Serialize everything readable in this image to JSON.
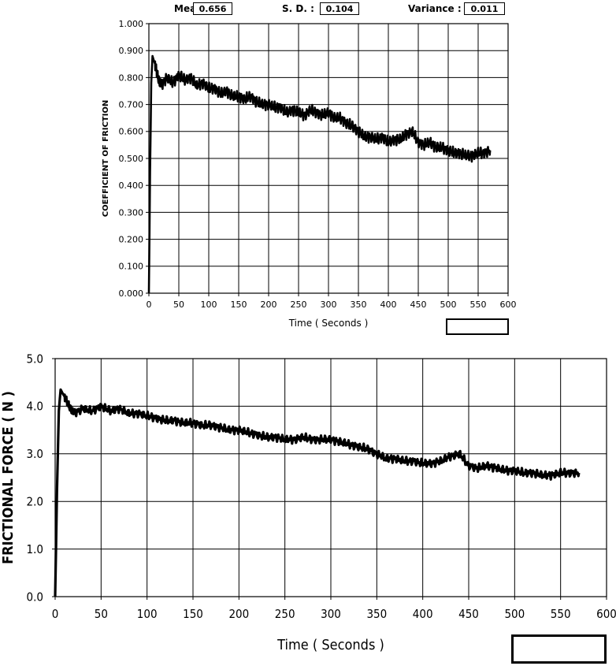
{
  "stats": {
    "mean_label": "Mean :",
    "mean_value": "0.656",
    "sd_label": "S. D. :",
    "sd_value": "0.104",
    "variance_label": "Variance :",
    "variance_value": "0.011"
  },
  "chart_data": [
    {
      "type": "line",
      "title": "",
      "xlabel": "Time ( Seconds )",
      "ylabel": "COEFFICIENT OF FRICTION",
      "xlim": [
        0,
        600
      ],
      "ylim": [
        0,
        1
      ],
      "x_ticks": [
        "0",
        "50",
        "100",
        "150",
        "200",
        "250",
        "300",
        "350",
        "400",
        "450",
        "500",
        "550",
        "600"
      ],
      "y_ticks": [
        "0.000",
        "0.100",
        "0.200",
        "0.300",
        "0.400",
        "0.500",
        "0.600",
        "0.700",
        "0.800",
        "0.900",
        "1.000"
      ],
      "grid": true,
      "series": [
        {
          "x": [
            0,
            2,
            4,
            6,
            10,
            15,
            20,
            30,
            40,
            50,
            60,
            70,
            80,
            90,
            100,
            110,
            120,
            130,
            140,
            150,
            160,
            170,
            180,
            190,
            200,
            210,
            220,
            230,
            240,
            250,
            260,
            270,
            280,
            290,
            300,
            310,
            320,
            330,
            340,
            350,
            360,
            370,
            380,
            390,
            400,
            410,
            420,
            430,
            440,
            450,
            460,
            470,
            480,
            490,
            500,
            510,
            520,
            530,
            540,
            550,
            560,
            570
          ],
          "y": [
            0.0,
            0.45,
            0.78,
            0.88,
            0.85,
            0.8,
            0.77,
            0.8,
            0.78,
            0.81,
            0.79,
            0.8,
            0.77,
            0.78,
            0.76,
            0.76,
            0.74,
            0.75,
            0.73,
            0.73,
            0.72,
            0.73,
            0.71,
            0.7,
            0.7,
            0.69,
            0.69,
            0.67,
            0.68,
            0.67,
            0.66,
            0.68,
            0.67,
            0.66,
            0.67,
            0.65,
            0.65,
            0.63,
            0.62,
            0.6,
            0.58,
            0.58,
            0.57,
            0.58,
            0.56,
            0.57,
            0.57,
            0.59,
            0.6,
            0.56,
            0.55,
            0.56,
            0.54,
            0.54,
            0.53,
            0.52,
            0.52,
            0.51,
            0.51,
            0.52,
            0.52,
            0.53
          ]
        }
      ]
    },
    {
      "type": "line",
      "title": "",
      "xlabel": "Time ( Seconds )",
      "ylabel": "FRICTIONAL FORCE ( N )",
      "xlim": [
        0,
        600
      ],
      "ylim": [
        0,
        5
      ],
      "x_ticks": [
        "0",
        "50",
        "100",
        "150",
        "200",
        "250",
        "300",
        "350",
        "400",
        "450",
        "500",
        "550",
        "600"
      ],
      "y_ticks": [
        "0.0",
        "1.0",
        "2.0",
        "3.0",
        "4.0",
        "5.0"
      ],
      "grid": true,
      "series": [
        {
          "x": [
            0,
            2,
            4,
            6,
            10,
            15,
            20,
            30,
            40,
            50,
            60,
            70,
            80,
            90,
            100,
            110,
            120,
            130,
            140,
            150,
            160,
            170,
            180,
            190,
            200,
            210,
            220,
            230,
            240,
            250,
            260,
            270,
            280,
            290,
            300,
            310,
            320,
            330,
            340,
            350,
            360,
            370,
            380,
            390,
            400,
            410,
            420,
            430,
            440,
            450,
            460,
            470,
            480,
            490,
            500,
            510,
            520,
            530,
            540,
            550,
            560,
            570
          ],
          "y": [
            0.0,
            2.2,
            3.9,
            4.35,
            4.2,
            4.0,
            3.85,
            3.95,
            3.9,
            4.0,
            3.9,
            3.95,
            3.85,
            3.85,
            3.8,
            3.75,
            3.7,
            3.7,
            3.65,
            3.65,
            3.6,
            3.6,
            3.55,
            3.5,
            3.5,
            3.45,
            3.4,
            3.35,
            3.35,
            3.3,
            3.3,
            3.35,
            3.3,
            3.3,
            3.3,
            3.25,
            3.2,
            3.15,
            3.1,
            3.0,
            2.9,
            2.9,
            2.85,
            2.85,
            2.8,
            2.8,
            2.85,
            2.95,
            3.0,
            2.75,
            2.7,
            2.75,
            2.7,
            2.65,
            2.65,
            2.6,
            2.6,
            2.55,
            2.55,
            2.6,
            2.6,
            2.6
          ]
        }
      ]
    }
  ]
}
